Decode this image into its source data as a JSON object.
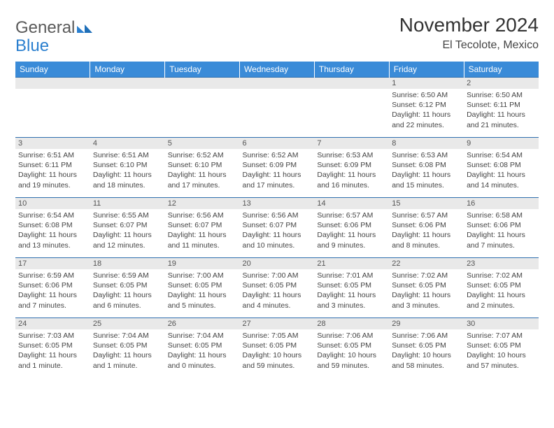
{
  "brand": {
    "part1": "General",
    "part2": "Blue"
  },
  "title": "November 2024",
  "location": "El Tecolote, Mexico",
  "colors": {
    "header_bg": "#3a8bd8",
    "header_text": "#ffffff",
    "row_border": "#2f6fae",
    "daynum_bg": "#e9e9e9",
    "brand_blue": "#2a7fcf",
    "brand_gray": "#5a5a5a",
    "text": "#333333"
  },
  "weekdays": [
    "Sunday",
    "Monday",
    "Tuesday",
    "Wednesday",
    "Thursday",
    "Friday",
    "Saturday"
  ],
  "weeks": [
    [
      null,
      null,
      null,
      null,
      null,
      {
        "n": "1",
        "sr": "Sunrise: 6:50 AM",
        "ss": "Sunset: 6:12 PM",
        "d1": "Daylight: 11 hours",
        "d2": "and 22 minutes."
      },
      {
        "n": "2",
        "sr": "Sunrise: 6:50 AM",
        "ss": "Sunset: 6:11 PM",
        "d1": "Daylight: 11 hours",
        "d2": "and 21 minutes."
      }
    ],
    [
      {
        "n": "3",
        "sr": "Sunrise: 6:51 AM",
        "ss": "Sunset: 6:11 PM",
        "d1": "Daylight: 11 hours",
        "d2": "and 19 minutes."
      },
      {
        "n": "4",
        "sr": "Sunrise: 6:51 AM",
        "ss": "Sunset: 6:10 PM",
        "d1": "Daylight: 11 hours",
        "d2": "and 18 minutes."
      },
      {
        "n": "5",
        "sr": "Sunrise: 6:52 AM",
        "ss": "Sunset: 6:10 PM",
        "d1": "Daylight: 11 hours",
        "d2": "and 17 minutes."
      },
      {
        "n": "6",
        "sr": "Sunrise: 6:52 AM",
        "ss": "Sunset: 6:09 PM",
        "d1": "Daylight: 11 hours",
        "d2": "and 17 minutes."
      },
      {
        "n": "7",
        "sr": "Sunrise: 6:53 AM",
        "ss": "Sunset: 6:09 PM",
        "d1": "Daylight: 11 hours",
        "d2": "and 16 minutes."
      },
      {
        "n": "8",
        "sr": "Sunrise: 6:53 AM",
        "ss": "Sunset: 6:08 PM",
        "d1": "Daylight: 11 hours",
        "d2": "and 15 minutes."
      },
      {
        "n": "9",
        "sr": "Sunrise: 6:54 AM",
        "ss": "Sunset: 6:08 PM",
        "d1": "Daylight: 11 hours",
        "d2": "and 14 minutes."
      }
    ],
    [
      {
        "n": "10",
        "sr": "Sunrise: 6:54 AM",
        "ss": "Sunset: 6:08 PM",
        "d1": "Daylight: 11 hours",
        "d2": "and 13 minutes."
      },
      {
        "n": "11",
        "sr": "Sunrise: 6:55 AM",
        "ss": "Sunset: 6:07 PM",
        "d1": "Daylight: 11 hours",
        "d2": "and 12 minutes."
      },
      {
        "n": "12",
        "sr": "Sunrise: 6:56 AM",
        "ss": "Sunset: 6:07 PM",
        "d1": "Daylight: 11 hours",
        "d2": "and 11 minutes."
      },
      {
        "n": "13",
        "sr": "Sunrise: 6:56 AM",
        "ss": "Sunset: 6:07 PM",
        "d1": "Daylight: 11 hours",
        "d2": "and 10 minutes."
      },
      {
        "n": "14",
        "sr": "Sunrise: 6:57 AM",
        "ss": "Sunset: 6:06 PM",
        "d1": "Daylight: 11 hours",
        "d2": "and 9 minutes."
      },
      {
        "n": "15",
        "sr": "Sunrise: 6:57 AM",
        "ss": "Sunset: 6:06 PM",
        "d1": "Daylight: 11 hours",
        "d2": "and 8 minutes."
      },
      {
        "n": "16",
        "sr": "Sunrise: 6:58 AM",
        "ss": "Sunset: 6:06 PM",
        "d1": "Daylight: 11 hours",
        "d2": "and 7 minutes."
      }
    ],
    [
      {
        "n": "17",
        "sr": "Sunrise: 6:59 AM",
        "ss": "Sunset: 6:06 PM",
        "d1": "Daylight: 11 hours",
        "d2": "and 7 minutes."
      },
      {
        "n": "18",
        "sr": "Sunrise: 6:59 AM",
        "ss": "Sunset: 6:05 PM",
        "d1": "Daylight: 11 hours",
        "d2": "and 6 minutes."
      },
      {
        "n": "19",
        "sr": "Sunrise: 7:00 AM",
        "ss": "Sunset: 6:05 PM",
        "d1": "Daylight: 11 hours",
        "d2": "and 5 minutes."
      },
      {
        "n": "20",
        "sr": "Sunrise: 7:00 AM",
        "ss": "Sunset: 6:05 PM",
        "d1": "Daylight: 11 hours",
        "d2": "and 4 minutes."
      },
      {
        "n": "21",
        "sr": "Sunrise: 7:01 AM",
        "ss": "Sunset: 6:05 PM",
        "d1": "Daylight: 11 hours",
        "d2": "and 3 minutes."
      },
      {
        "n": "22",
        "sr": "Sunrise: 7:02 AM",
        "ss": "Sunset: 6:05 PM",
        "d1": "Daylight: 11 hours",
        "d2": "and 3 minutes."
      },
      {
        "n": "23",
        "sr": "Sunrise: 7:02 AM",
        "ss": "Sunset: 6:05 PM",
        "d1": "Daylight: 11 hours",
        "d2": "and 2 minutes."
      }
    ],
    [
      {
        "n": "24",
        "sr": "Sunrise: 7:03 AM",
        "ss": "Sunset: 6:05 PM",
        "d1": "Daylight: 11 hours",
        "d2": "and 1 minute."
      },
      {
        "n": "25",
        "sr": "Sunrise: 7:04 AM",
        "ss": "Sunset: 6:05 PM",
        "d1": "Daylight: 11 hours",
        "d2": "and 1 minute."
      },
      {
        "n": "26",
        "sr": "Sunrise: 7:04 AM",
        "ss": "Sunset: 6:05 PM",
        "d1": "Daylight: 11 hours",
        "d2": "and 0 minutes."
      },
      {
        "n": "27",
        "sr": "Sunrise: 7:05 AM",
        "ss": "Sunset: 6:05 PM",
        "d1": "Daylight: 10 hours",
        "d2": "and 59 minutes."
      },
      {
        "n": "28",
        "sr": "Sunrise: 7:06 AM",
        "ss": "Sunset: 6:05 PM",
        "d1": "Daylight: 10 hours",
        "d2": "and 59 minutes."
      },
      {
        "n": "29",
        "sr": "Sunrise: 7:06 AM",
        "ss": "Sunset: 6:05 PM",
        "d1": "Daylight: 10 hours",
        "d2": "and 58 minutes."
      },
      {
        "n": "30",
        "sr": "Sunrise: 7:07 AM",
        "ss": "Sunset: 6:05 PM",
        "d1": "Daylight: 10 hours",
        "d2": "and 57 minutes."
      }
    ]
  ]
}
